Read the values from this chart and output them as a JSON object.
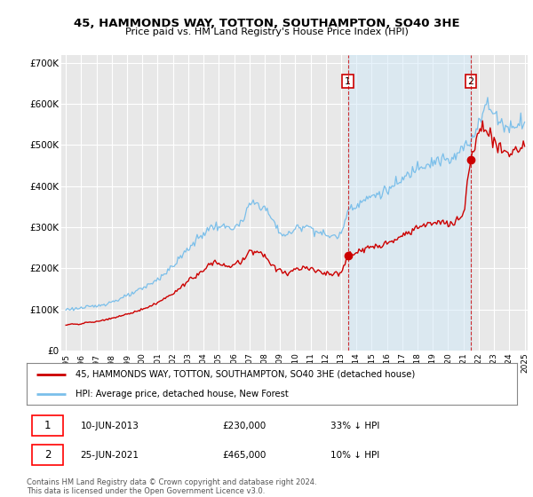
{
  "title": "45, HAMMONDS WAY, TOTTON, SOUTHAMPTON, SO40 3HE",
  "subtitle": "Price paid vs. HM Land Registry's House Price Index (HPI)",
  "ylim": [
    0,
    720000
  ],
  "yticks": [
    0,
    100000,
    200000,
    300000,
    400000,
    500000,
    600000,
    700000
  ],
  "ytick_labels": [
    "£0",
    "£100K",
    "£200K",
    "£300K",
    "£400K",
    "£500K",
    "£600K",
    "£700K"
  ],
  "background_color": "#ffffff",
  "plot_bg_color": "#e8e8e8",
  "grid_color": "#ffffff",
  "hpi_color": "#7bbfea",
  "hpi_fill_color": "#d0e8f8",
  "price_color": "#cc0000",
  "marker1_date": 2013.44,
  "marker1_price": 230000,
  "marker2_date": 2021.48,
  "marker2_price": 465000,
  "legend_price_label": "45, HAMMONDS WAY, TOTTON, SOUTHAMPTON, SO40 3HE (detached house)",
  "legend_hpi_label": "HPI: Average price, detached house, New Forest",
  "footnote": "Contains HM Land Registry data © Crown copyright and database right 2024.\nThis data is licensed under the Open Government Licence v3.0.",
  "xlim_start": 1995.0,
  "xlim_end": 2025.2
}
